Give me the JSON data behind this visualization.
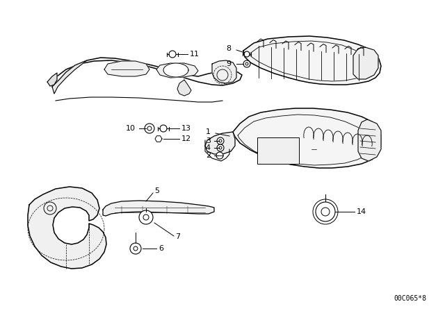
{
  "bg_color": "#ffffff",
  "line_color": "#000000",
  "diagram_code": "00C065*8",
  "lw": 1.0,
  "thin": 0.6,
  "fig_w": 6.4,
  "fig_h": 4.48,
  "dpi": 100
}
